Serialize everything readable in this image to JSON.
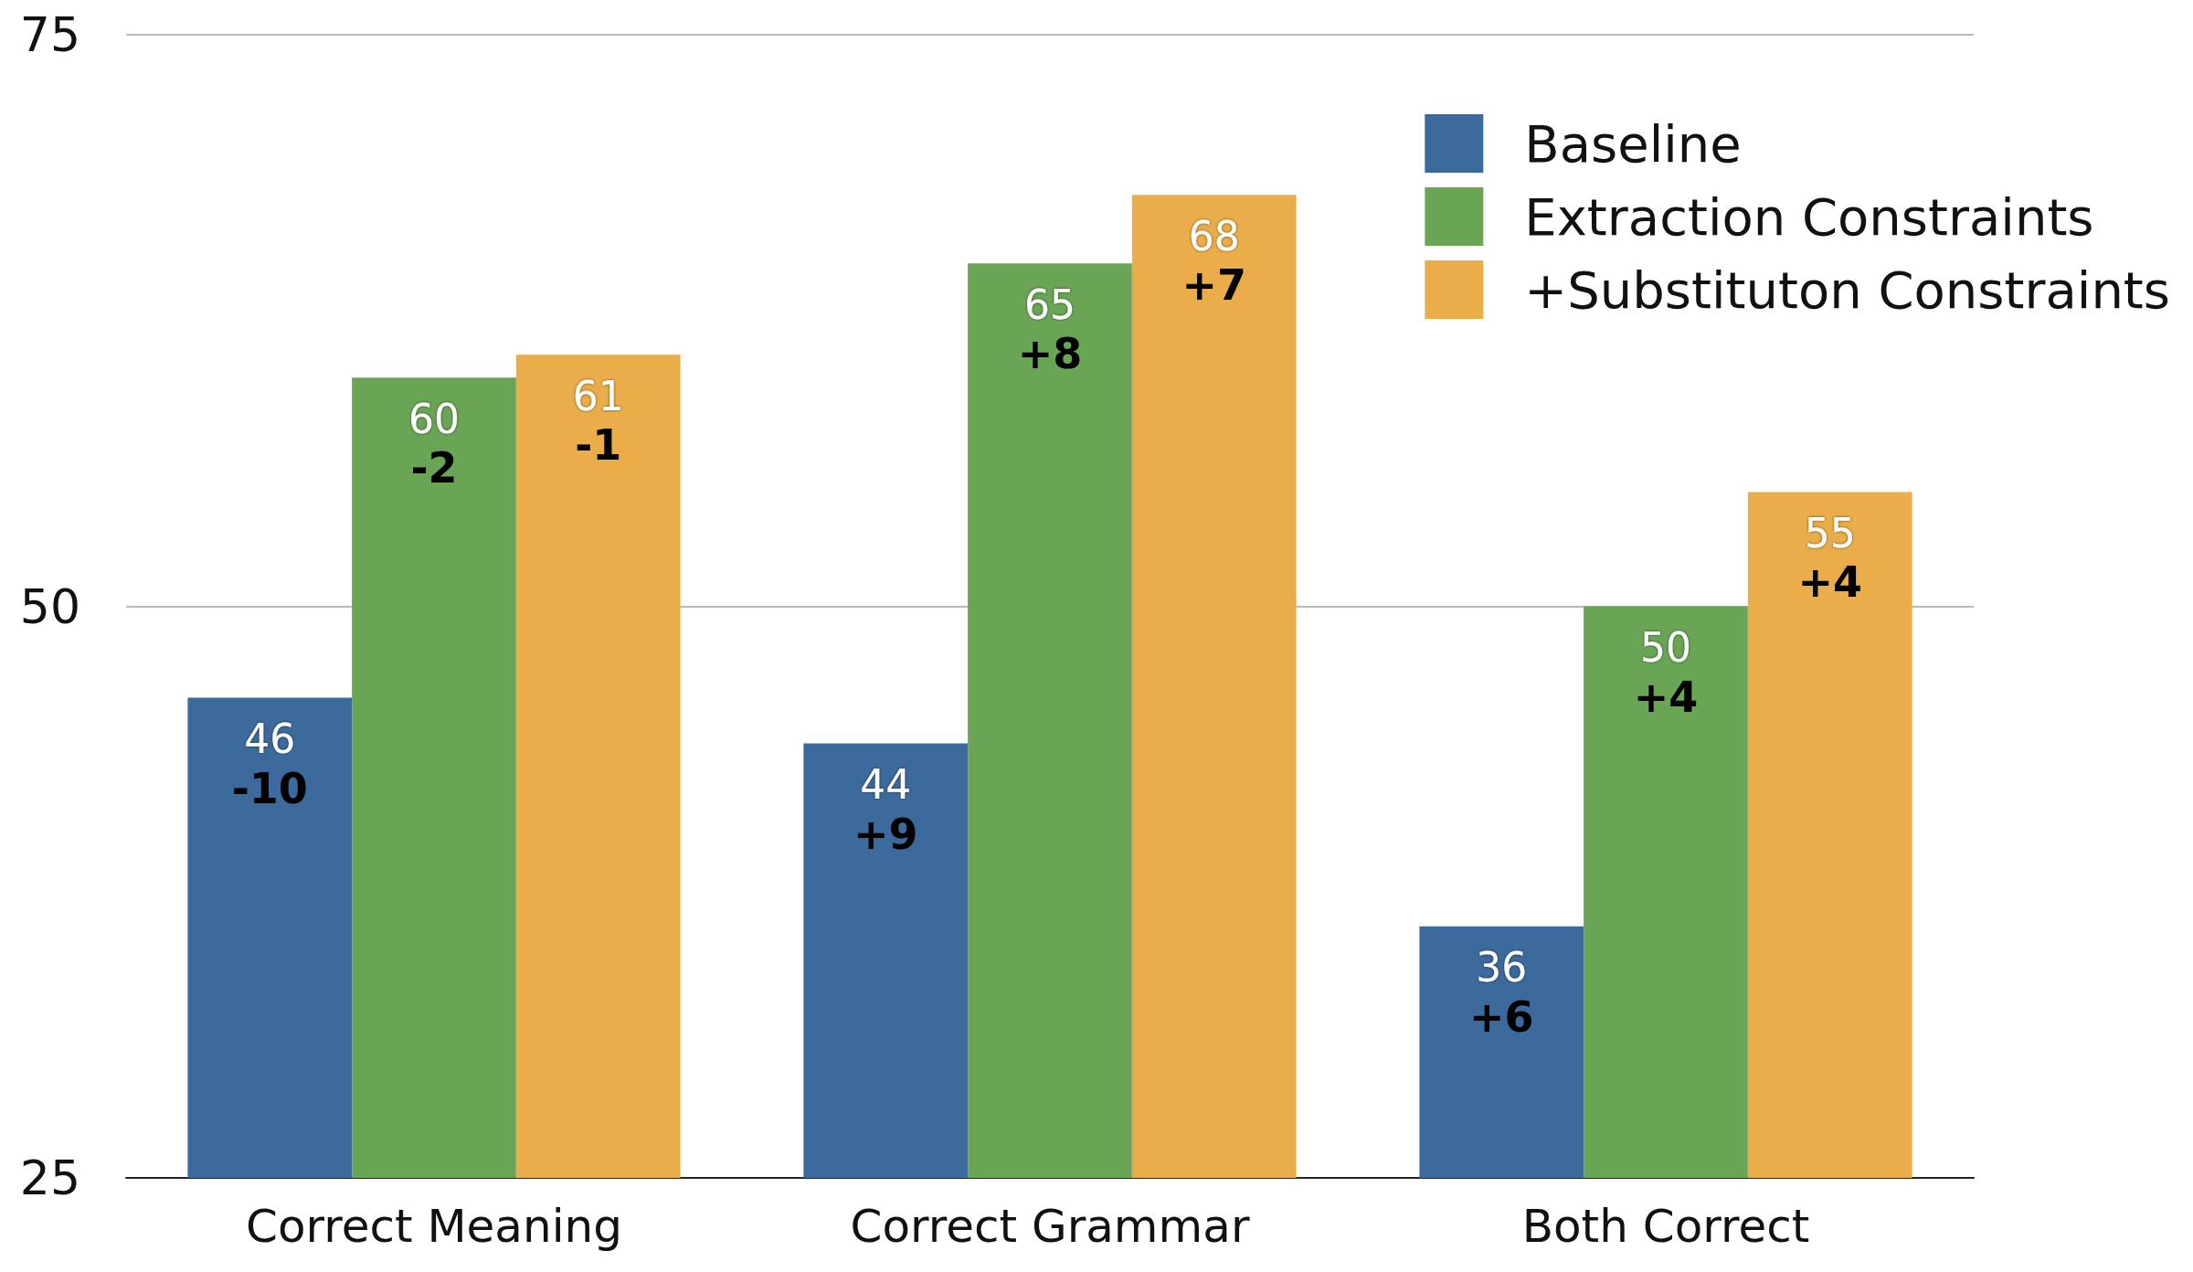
{
  "chart_data": {
    "type": "bar",
    "categories": [
      "Correct Meaning",
      "Correct Grammar",
      "Both Correct"
    ],
    "series": [
      {
        "name": "Baseline",
        "color": "#3d6a9c",
        "values": [
          46,
          44,
          36
        ],
        "value_labels": [
          "46\n-10",
          "44\n+9",
          "36\n+6"
        ]
      },
      {
        "name": "Extraction Constraints",
        "color": "#6aa556",
        "values": [
          60,
          65,
          50
        ],
        "value_labels": [
          "60\n-2",
          "65\n+8",
          "50\n+4"
        ]
      },
      {
        "name": "+Substituton Constraints",
        "color": "#eaad4a",
        "values": [
          61,
          68,
          55
        ],
        "value_labels": [
          "61\n-1",
          "68\n+7",
          "55\n+4"
        ]
      }
    ],
    "ylim": [
      25,
      75
    ],
    "yticks": [
      25,
      50,
      75
    ],
    "grid": "y",
    "legend": "top right"
  }
}
